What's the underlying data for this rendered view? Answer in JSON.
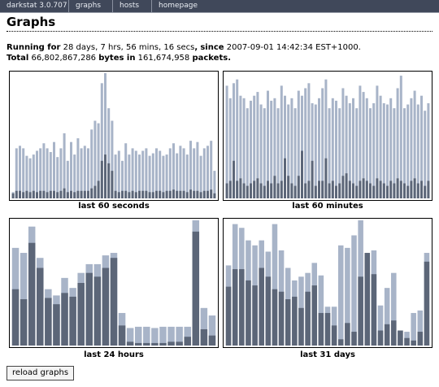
{
  "nav": {
    "brand": "darkstat 3.0.707",
    "items": [
      {
        "label": "graphs"
      },
      {
        "label": "hosts"
      },
      {
        "label": "homepage"
      }
    ]
  },
  "page": {
    "title": "Graphs",
    "running_label": "Running for",
    "running_value": "28 days, 7 hrs, 56 mins, 16 secs",
    "since_label": "since",
    "since_value": "2007-09-01 14:42:34 EST+1000.",
    "total_label": "Total",
    "total_bytes": "66,802,867,286",
    "bytes_in_label": "bytes in",
    "total_packets": "161,674,958",
    "packets_label": "packets."
  },
  "colors": {
    "bar_total": "#a8b4c8",
    "bar_inner": "#5c6678",
    "nav_bg": "#40485a"
  },
  "chart_data": [
    {
      "type": "bar",
      "title": "last 60 seconds",
      "xlabel": "last 60 seconds",
      "ylim": [
        0,
        100
      ],
      "series": [
        {
          "values": [
            5,
            40,
            42,
            40,
            34,
            32,
            35,
            38,
            40,
            44,
            40,
            37,
            45,
            33,
            40,
            52,
            30,
            45,
            35,
            48,
            40,
            42,
            40,
            55,
            62,
            60,
            92,
            100,
            72,
            62,
            35,
            38,
            30,
            44,
            35,
            40,
            38,
            35,
            38,
            40,
            34,
            36,
            40,
            38,
            34,
            35,
            40,
            44,
            36,
            42,
            40,
            35,
            46,
            40,
            45,
            34,
            40,
            42,
            46,
            22
          ]
        },
        {
          "values": [
            4,
            6,
            6,
            5,
            6,
            5,
            6,
            5,
            6,
            6,
            5,
            6,
            6,
            5,
            6,
            8,
            5,
            6,
            5,
            6,
            6,
            6,
            6,
            8,
            10,
            14,
            30,
            35,
            28,
            22,
            6,
            5,
            6,
            6,
            5,
            6,
            5,
            6,
            6,
            6,
            5,
            5,
            6,
            6,
            5,
            6,
            6,
            7,
            6,
            6,
            6,
            5,
            7,
            6,
            6,
            5,
            6,
            6,
            7,
            4
          ]
        }
      ]
    },
    {
      "type": "bar",
      "title": "last 60 minutes",
      "xlabel": "last 60 minutes",
      "ylim": [
        0,
        100
      ],
      "series": [
        {
          "values": [
            90,
            80,
            92,
            95,
            82,
            80,
            72,
            78,
            82,
            85,
            75,
            72,
            86,
            78,
            80,
            72,
            90,
            82,
            75,
            80,
            72,
            86,
            82,
            88,
            92,
            76,
            75,
            80,
            88,
            95,
            72,
            80,
            78,
            72,
            88,
            82,
            76,
            80,
            72,
            90,
            85,
            80,
            72,
            76,
            90,
            82,
            76,
            75,
            80,
            72,
            88,
            98,
            72,
            75,
            80,
            86,
            75,
            82,
            70,
            76
          ]
        },
        {
          "values": [
            12,
            14,
            30,
            14,
            16,
            12,
            10,
            12,
            14,
            16,
            12,
            10,
            14,
            12,
            18,
            12,
            14,
            32,
            18,
            12,
            10,
            18,
            38,
            12,
            14,
            30,
            10,
            14,
            14,
            32,
            12,
            14,
            10,
            12,
            18,
            20,
            14,
            12,
            10,
            14,
            16,
            14,
            12,
            10,
            16,
            14,
            12,
            10,
            14,
            12,
            16,
            14,
            12,
            10,
            14,
            16,
            12,
            14,
            10,
            14
          ]
        }
      ]
    },
    {
      "type": "bar",
      "title": "last 24 hours",
      "xlabel": "last 24 hours",
      "ylim": [
        0,
        100
      ],
      "series": [
        {
          "values": [
            78,
            74,
            95,
            70,
            45,
            40,
            54,
            46,
            58,
            65,
            65,
            72,
            74,
            26,
            14,
            15,
            15,
            14,
            15,
            15,
            15,
            15,
            100,
            30,
            24
          ]
        },
        {
          "values": [
            45,
            37,
            82,
            62,
            38,
            33,
            42,
            39,
            50,
            58,
            55,
            62,
            70,
            16,
            3,
            2,
            2,
            2,
            2,
            3,
            3,
            7,
            91,
            13,
            8
          ]
        }
      ]
    },
    {
      "type": "bar",
      "title": "last 31 days",
      "xlabel": "last 31 days",
      "ylim": [
        0,
        100
      ],
      "series": [
        {
          "values": [
            64,
            97,
            94,
            84,
            80,
            84,
            75,
            97,
            76,
            62,
            52,
            55,
            58,
            66,
            56,
            31,
            31,
            80,
            78,
            88,
            100,
            64,
            76,
            32,
            46,
            58,
            12,
            11,
            26,
            28,
            74
          ]
        },
        {
          "values": [
            47,
            61,
            61,
            52,
            48,
            62,
            55,
            45,
            43,
            37,
            39,
            30,
            43,
            48,
            26,
            26,
            16,
            5,
            18,
            11,
            55,
            74,
            57,
            12,
            17,
            20,
            12,
            6,
            4,
            11,
            67
          ]
        }
      ]
    }
  ],
  "reload_label": "reload graphs"
}
